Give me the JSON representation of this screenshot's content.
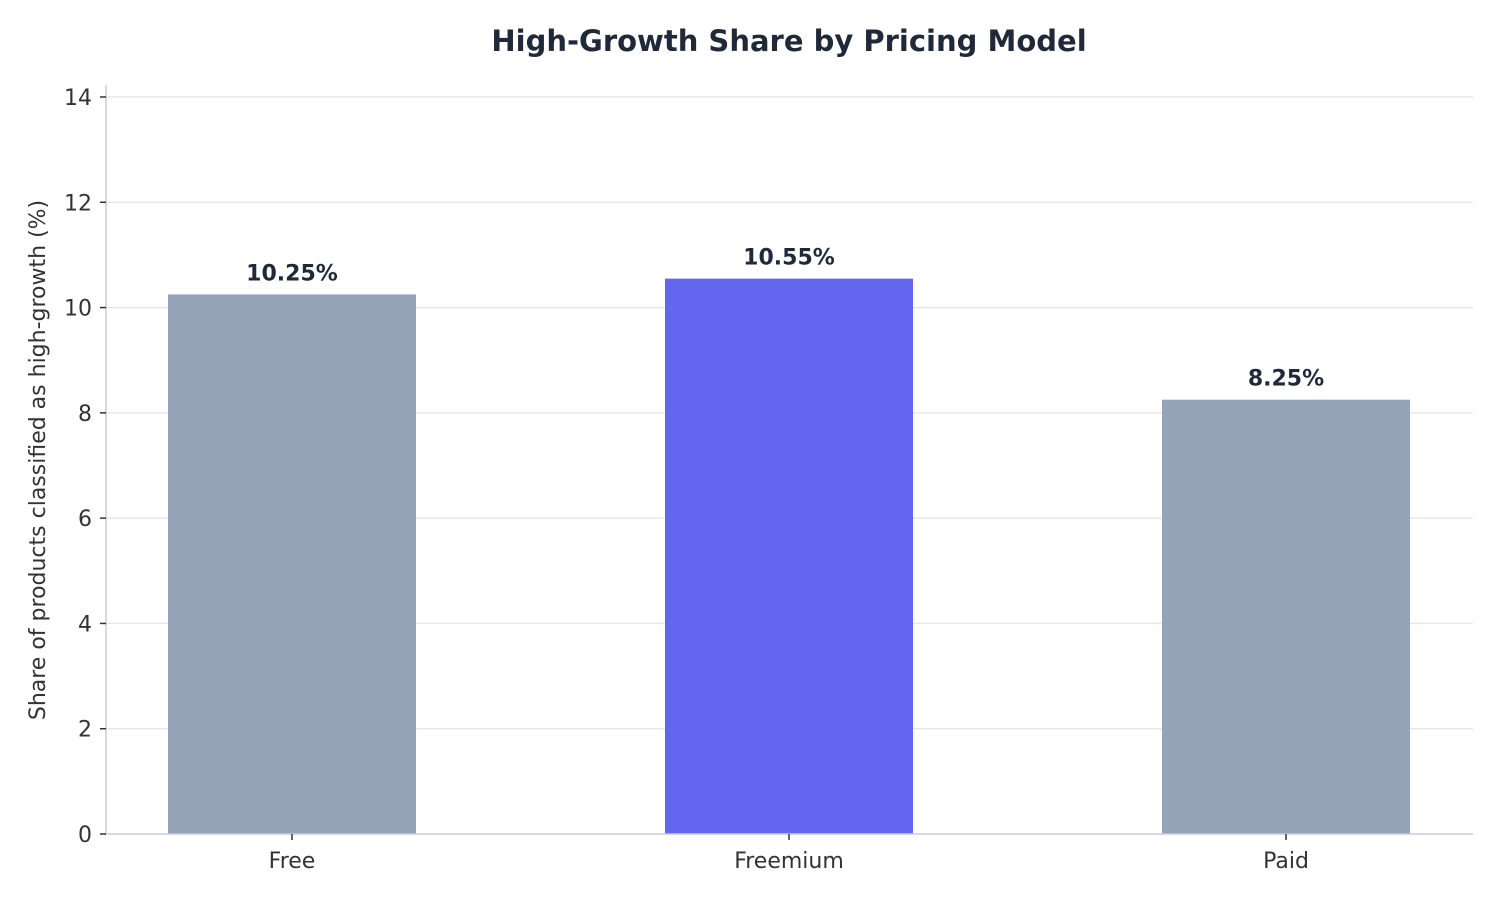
{
  "chart_data": {
    "type": "bar",
    "title": "High-Growth Share by Pricing Model",
    "xlabel": "",
    "ylabel": "Share of products classified as high-growth (%)",
    "categories": [
      "Free",
      "Freemium",
      "Paid"
    ],
    "values": [
      10.25,
      10.55,
      8.25
    ],
    "value_labels": [
      "10.25%",
      "10.55%",
      "8.25%"
    ],
    "bar_colors": [
      "#94a3b8",
      "#6366f1",
      "#94a3b8"
    ],
    "ylim": [
      0,
      14
    ],
    "yticks": [
      0,
      2,
      4,
      6,
      8,
      10,
      12,
      14
    ],
    "ytick_labels": [
      "0",
      "2",
      "4",
      "6",
      "8",
      "10",
      "12",
      "14"
    ],
    "grid": true,
    "grid_axis": "y",
    "legend": "none",
    "highlight_category": "Freemium"
  }
}
